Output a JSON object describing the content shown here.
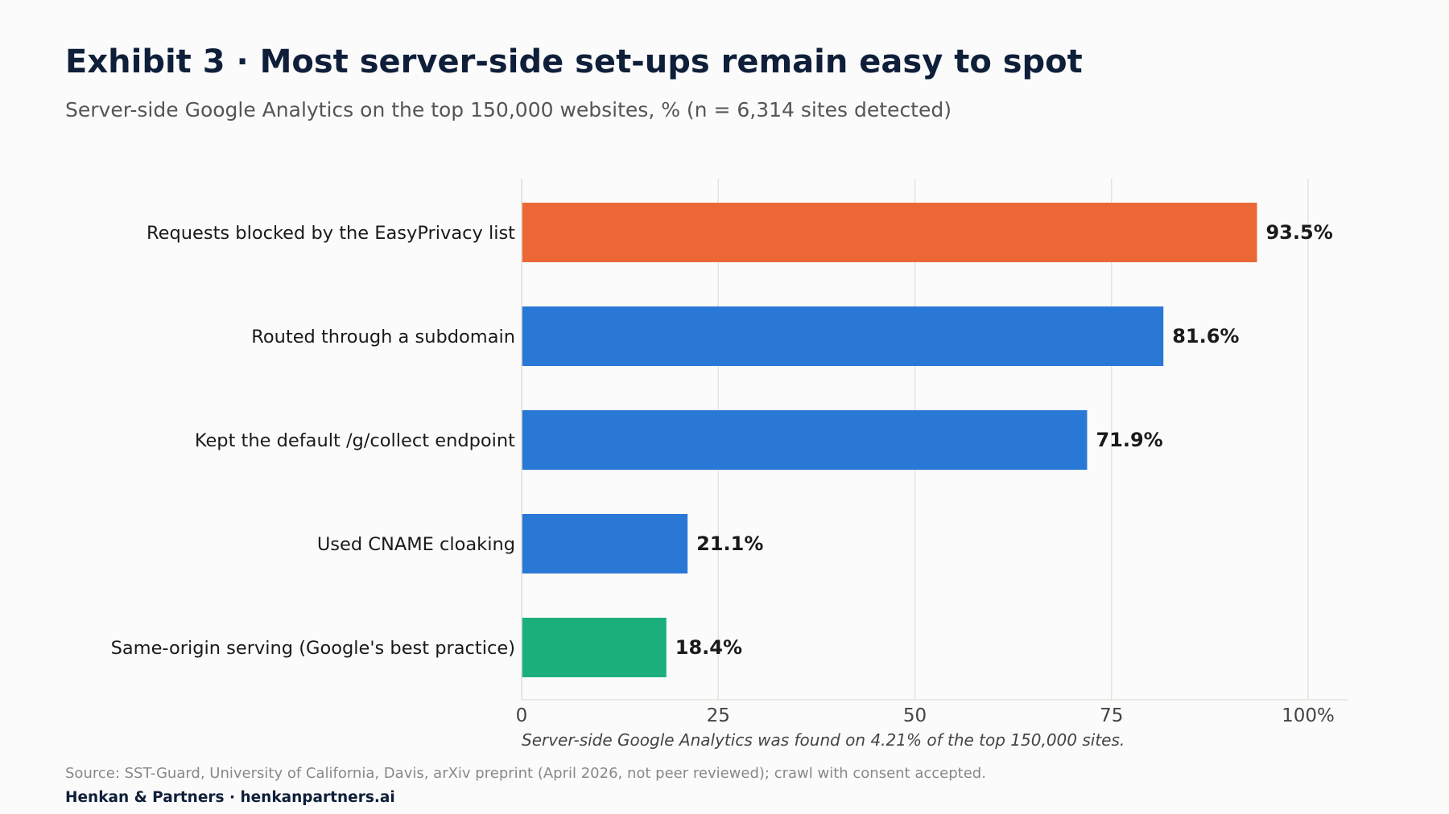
{
  "title": "Exhibit 3 · Most server-side set-ups remain easy to spot",
  "subtitle": "Server-side Google Analytics on the top 150,000 websites, % (n = 6,314 sites detected)",
  "note": "Server-side Google Analytics was found on 4.21% of the top 150,000 sites.",
  "source": "Source: SST-Guard, University of California, Davis, arXiv preprint (April 2026, not peer reviewed); crawl with consent accepted.",
  "brand": "Henkan & Partners · henkanpartners.ai",
  "colors": {
    "highlight": "#eb6836",
    "primary": "#2a78d5",
    "best_practice": "#1baf7c",
    "gridline": "#e4e4dc"
  },
  "chart_data": {
    "type": "bar",
    "orientation": "horizontal",
    "categories": [
      "Requests blocked by the EasyPrivacy list",
      "Routed through a subdomain",
      "Kept the default /g/collect endpoint",
      "Used CNAME cloaking",
      "Same-origin serving (Google's best practice)"
    ],
    "values": [
      93.5,
      81.6,
      71.9,
      21.1,
      18.4
    ],
    "value_labels": [
      "93.5%",
      "81.6%",
      "71.9%",
      "21.1%",
      "18.4%"
    ],
    "bar_colors": [
      "#eb6836",
      "#2a78d5",
      "#2a78d5",
      "#2a78d5",
      "#1baf7c"
    ],
    "xlim": [
      0,
      100
    ],
    "xticks": [
      0,
      25,
      50,
      75,
      100
    ],
    "xtick_labels": [
      "0",
      "25",
      "50",
      "75",
      "100%"
    ],
    "grid": "vertical",
    "xlabel": "",
    "ylabel": ""
  }
}
